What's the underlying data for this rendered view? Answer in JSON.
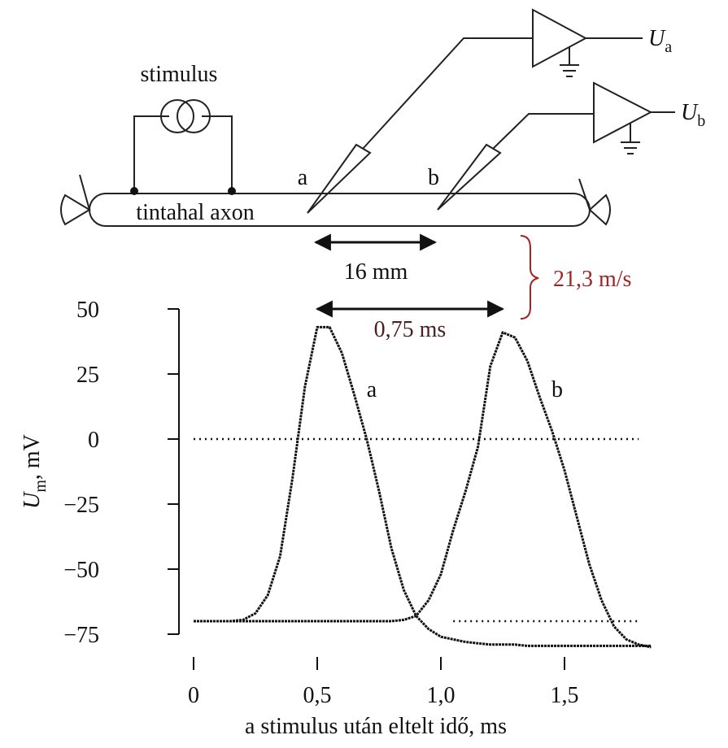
{
  "diagram": {
    "stimulus_label": "stimulus",
    "axon_label": "tintahal axon",
    "electrode_a": "a",
    "electrode_b": "b",
    "output_a": [
      "U",
      "a"
    ],
    "output_b": [
      "U",
      "b"
    ],
    "distance": "16 mm",
    "velocity": "21,3 m/s"
  },
  "chart_data": {
    "type": "line",
    "xlabel": "a stimulus után eltelt idő, ms",
    "ylabel": [
      "U",
      "m",
      ", mV"
    ],
    "x": [
      0,
      0.05,
      0.1,
      0.15,
      0.2,
      0.25,
      0.3,
      0.35,
      0.4,
      0.45,
      0.5,
      0.55,
      0.6,
      0.65,
      0.7,
      0.75,
      0.8,
      0.85,
      0.9,
      0.95,
      1.0,
      1.05,
      1.1,
      1.15,
      1.2,
      1.25,
      1.3,
      1.35,
      1.4,
      1.45,
      1.5,
      1.55,
      1.6,
      1.65,
      1.7,
      1.75,
      1.8,
      1.85
    ],
    "series": [
      {
        "name": "a",
        "color": "#111111",
        "values": [
          -70,
          -70,
          -70,
          -70,
          -69.5,
          -67,
          -60,
          -45,
          -15,
          20,
          43,
          43,
          33,
          17,
          0,
          -20,
          -42,
          -58,
          -68,
          -73,
          -76,
          -77,
          -78,
          -78.5,
          -79,
          -79,
          -79,
          -79.5,
          -79.5,
          -79.5,
          -79.5,
          -79.5,
          -79.5,
          -79.5,
          -79.5,
          -79.5,
          -79.5,
          -79.5
        ]
      },
      {
        "name": "b",
        "color": "#111111",
        "values": [
          -70,
          -70,
          -70,
          -70,
          -70,
          -70,
          -70,
          -70,
          -70,
          -70,
          -70,
          -70,
          -70,
          -70,
          -70,
          -70,
          -70,
          -69.5,
          -68,
          -62,
          -52,
          -35,
          -20,
          -3,
          28,
          41,
          39,
          30,
          16,
          3,
          -12,
          -30,
          -48,
          -62,
          -72,
          -77,
          -79,
          -80
        ]
      }
    ],
    "xlim": [
      0,
      1.85
    ],
    "xticks": [
      0,
      {
        "value": 0.5,
        "label": "0,5"
      },
      {
        "value": 1,
        "label": "1,0"
      },
      {
        "value": 1.5,
        "label": "1,5"
      }
    ],
    "ylim": [
      -82,
      52
    ],
    "yticks": [
      50,
      25,
      0,
      {
        "value": -25,
        "label": "−25"
      },
      {
        "value": -50,
        "label": "−50"
      },
      {
        "value": -75,
        "label": "−75"
      }
    ],
    "reference_lines": [
      {
        "y": 0,
        "x": [
          0,
          1.8
        ]
      },
      {
        "y": -70,
        "x": [
          1.05,
          1.8
        ]
      }
    ],
    "annotations": {
      "interval": "0,75 ms"
    },
    "grid": false
  }
}
